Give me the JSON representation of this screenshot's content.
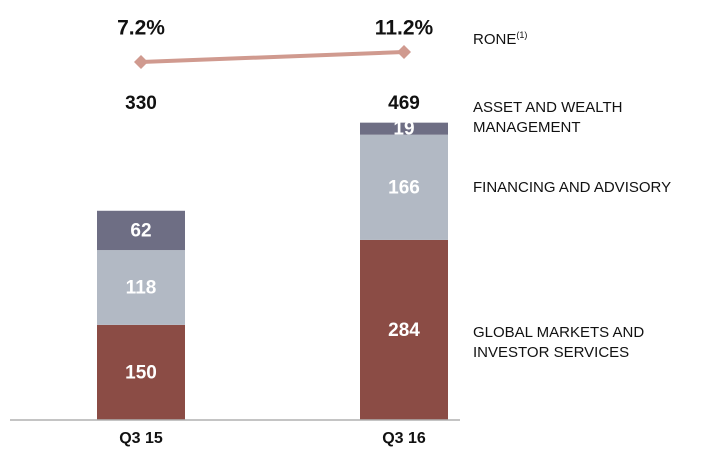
{
  "chart_data": {
    "type": "stacked_bar_line",
    "categories": [
      "Q3 15",
      "Q3 16"
    ],
    "series": [
      {
        "name": "GLOBAL MARKETS AND INVESTOR SERVICES",
        "color": "#8b4c45",
        "values": [
          150,
          284
        ]
      },
      {
        "name": "FINANCING AND ADVISORY",
        "color": "#b2b9c4",
        "values": [
          118,
          166
        ]
      },
      {
        "name": "ASSET AND WEALTH MANAGEMENT",
        "color": "#6e6e84",
        "values": [
          62,
          19
        ]
      }
    ],
    "totals": [
      330,
      469
    ],
    "ylim": [
      0,
      500
    ],
    "line": {
      "name": "RONE",
      "name_note": "(1)",
      "color": "#d09a8f",
      "values": [
        7.2,
        11.2
      ],
      "value_labels": [
        "7.2%",
        "11.2%"
      ],
      "axis": "y2"
    },
    "y2lim": [
      0,
      20
    ]
  }
}
